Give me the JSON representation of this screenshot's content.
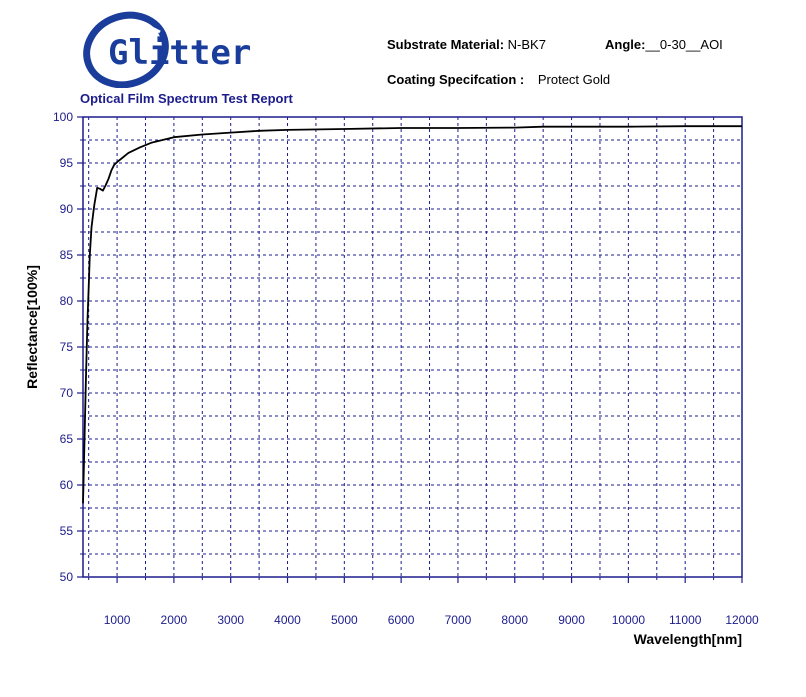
{
  "header": {
    "brand": "Glitter",
    "report_title": "Optical Film Spectrum Test Report",
    "substrate_label": "Substrate Material:",
    "substrate_value": "N-BK7",
    "angle_label": "Angle:",
    "angle_value": "__0-30__AOI",
    "coating_label": "Coating Specifcation :",
    "coating_value": "Protect Gold"
  },
  "colors": {
    "axis": "#1c1c8c",
    "grid": "#1c1c8c",
    "curve": "#000000",
    "logo_blue": "#1a3d9c"
  },
  "chart_data": {
    "type": "line",
    "title": "",
    "xlabel": "Wavelength[nm]",
    "ylabel": "Reflectance[100%]",
    "xlim": [
      400,
      12000
    ],
    "ylim": [
      50,
      100
    ],
    "xticks": [
      1000,
      2000,
      3000,
      4000,
      5000,
      6000,
      7000,
      8000,
      9000,
      10000,
      11000,
      12000
    ],
    "yticks": [
      50,
      55,
      60,
      65,
      70,
      75,
      80,
      85,
      90,
      95,
      100
    ],
    "grid": true,
    "series": [
      {
        "x": [
          400,
          420,
          450,
          480,
          500,
          520,
          550,
          580,
          600,
          650,
          700,
          750,
          800,
          850,
          900,
          950,
          1000,
          1100,
          1200,
          1400,
          1600,
          1800,
          2000,
          2500,
          3000,
          3500,
          4000,
          5000,
          6000,
          7000,
          8000,
          8500,
          9000,
          10000,
          11000,
          12000
        ],
        "y": [
          58,
          63,
          71,
          78,
          81.5,
          85,
          88,
          89.5,
          90.5,
          92.3,
          92.2,
          92.0,
          92.6,
          93.3,
          94.2,
          94.8,
          95.1,
          95.6,
          96.1,
          96.7,
          97.2,
          97.5,
          97.8,
          98.1,
          98.3,
          98.5,
          98.6,
          98.7,
          98.8,
          98.8,
          98.85,
          98.95,
          98.95,
          98.95,
          99.0,
          99.0
        ]
      }
    ]
  }
}
